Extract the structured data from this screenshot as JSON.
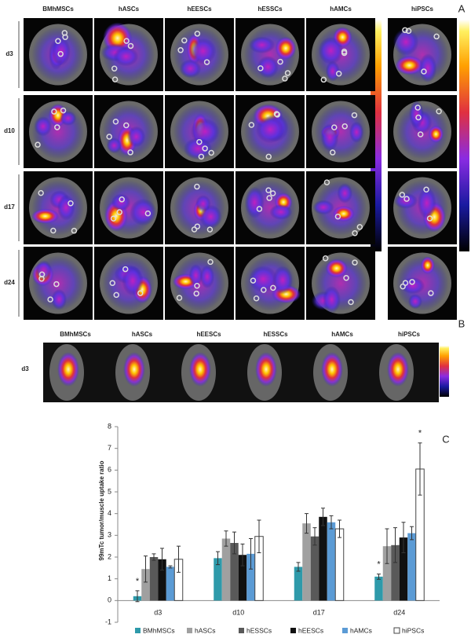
{
  "panels": {
    "A": {
      "label": "A",
      "columns": [
        "BMhMSCs",
        "hASCs",
        "hEESCs",
        "hESSCs",
        "hAMCs",
        "hiPSCs"
      ],
      "rows": [
        "d3",
        "d10",
        "d17",
        "d24"
      ]
    },
    "B": {
      "label": "B",
      "columns": [
        "BMhMSCs",
        "hASCs",
        "hEESCs",
        "hESSCs",
        "hAMCs",
        "hiPSCs"
      ],
      "rows": [
        "d3"
      ]
    },
    "C": {
      "label": "C"
    }
  },
  "chart_data": {
    "type": "bar",
    "y_label": "99mTc tumor/muscle uptake ratio",
    "categories": [
      "d3",
      "d10",
      "d17",
      "d24"
    ],
    "series": [
      {
        "name": "BMhMSCs",
        "color": "#2e9aaa",
        "values": [
          0.2,
          1.95,
          1.55,
          1.1
        ],
        "errors": [
          0.25,
          0.3,
          0.2,
          0.12
        ]
      },
      {
        "name": "hASCs",
        "color": "#a0a0a0",
        "values": [
          1.45,
          2.85,
          3.55,
          2.5
        ],
        "errors": [
          0.6,
          0.35,
          0.45,
          0.8
        ]
      },
      {
        "name": "hESSCs",
        "color": "#595959",
        "values": [
          2.0,
          2.65,
          2.95,
          2.55
        ],
        "errors": [
          0.15,
          0.5,
          0.4,
          0.8
        ]
      },
      {
        "name": "hEESCs",
        "color": "#111111",
        "values": [
          1.9,
          2.1,
          3.85,
          2.9
        ],
        "errors": [
          0.5,
          0.5,
          0.4,
          0.7
        ]
      },
      {
        "name": "hAMCs",
        "color": "#5b9bd5",
        "values": [
          1.55,
          2.15,
          3.6,
          3.1
        ],
        "errors": [
          0.05,
          0.7,
          0.3,
          0.3
        ]
      },
      {
        "name": "hiPSCs",
        "color": "#ffffff",
        "values": [
          1.9,
          2.95,
          3.3,
          6.05
        ],
        "errors": [
          0.6,
          0.75,
          0.4,
          1.2
        ]
      }
    ],
    "annotations": [
      {
        "text": "*",
        "category": "d3",
        "series": "BMhMSCs"
      },
      {
        "text": "*",
        "category": "d24",
        "series": "BMhMSCs"
      },
      {
        "text": "*",
        "category": "d24",
        "series": "hiPSCs"
      }
    ],
    "ylim": [
      -1,
      8
    ],
    "yticks": [
      -1,
      0,
      1,
      2,
      3,
      4,
      5,
      6,
      7,
      8
    ],
    "grid": false
  }
}
